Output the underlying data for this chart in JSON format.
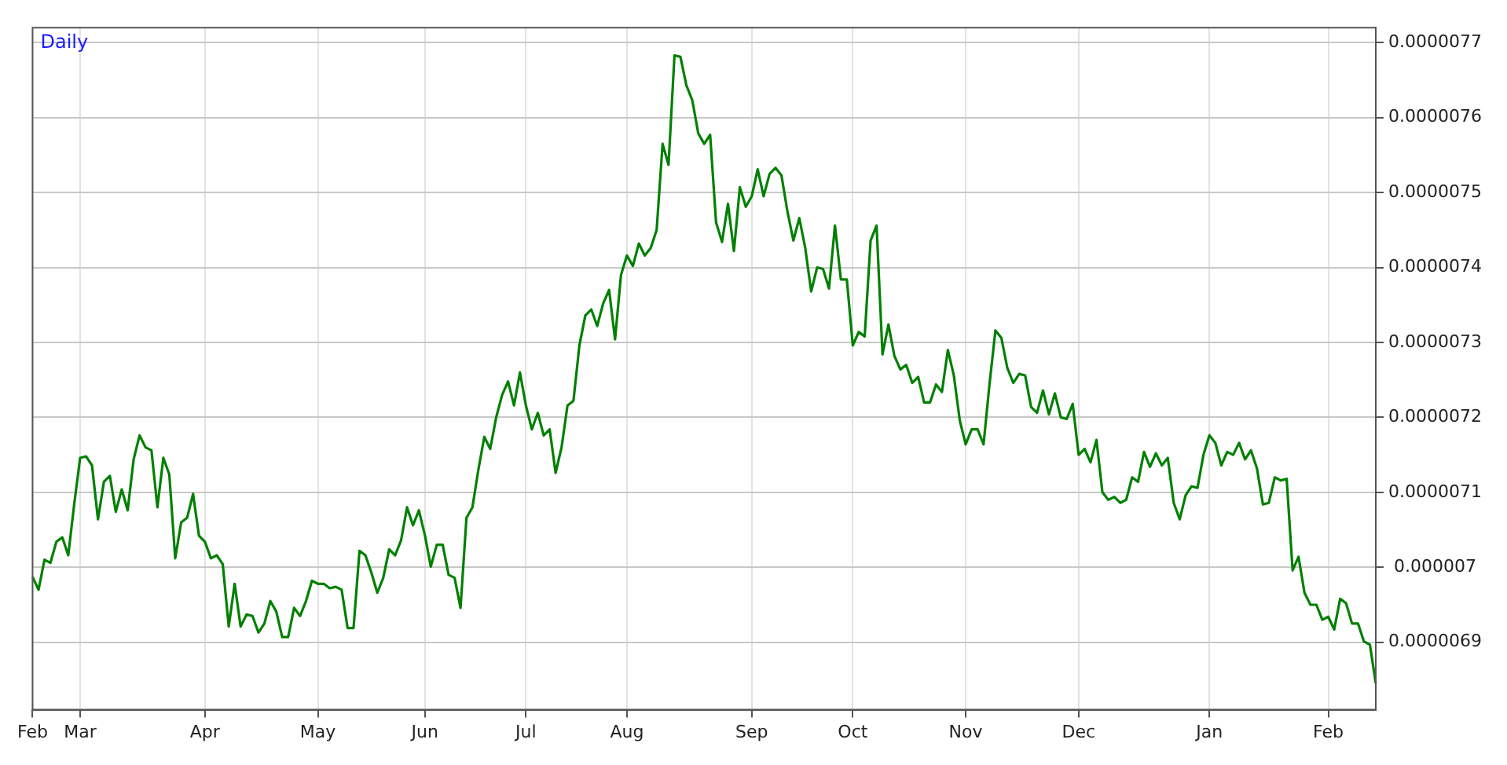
{
  "chart_data": {
    "type": "line",
    "title": "Daily",
    "grid": true,
    "legend": false,
    "marker": "none",
    "line_style": "solid",
    "categories": [
      "Feb",
      null,
      null,
      null,
      null,
      null,
      null,
      null,
      "Mar",
      null,
      null,
      null,
      null,
      null,
      null,
      null,
      null,
      null,
      null,
      null,
      null,
      null,
      null,
      null,
      null,
      null,
      null,
      null,
      null,
      "Apr",
      null,
      null,
      null,
      null,
      null,
      null,
      null,
      null,
      null,
      null,
      null,
      null,
      null,
      null,
      null,
      null,
      null,
      null,
      "May",
      null,
      null,
      null,
      null,
      null,
      null,
      null,
      null,
      null,
      null,
      null,
      null,
      null,
      null,
      null,
      null,
      null,
      "Jun",
      null,
      null,
      null,
      null,
      null,
      null,
      null,
      null,
      null,
      null,
      null,
      null,
      null,
      null,
      null,
      null,
      "Jul",
      null,
      null,
      null,
      null,
      null,
      null,
      null,
      null,
      null,
      null,
      null,
      null,
      null,
      null,
      null,
      null,
      "Aug",
      null,
      null,
      null,
      null,
      null,
      null,
      null,
      null,
      null,
      null,
      null,
      null,
      null,
      null,
      null,
      null,
      null,
      null,
      null,
      null,
      "Sep",
      null,
      null,
      null,
      null,
      null,
      null,
      null,
      null,
      null,
      null,
      null,
      null,
      null,
      null,
      null,
      null,
      "Oct",
      null,
      null,
      null,
      null,
      null,
      null,
      null,
      null,
      null,
      null,
      null,
      null,
      null,
      null,
      null,
      null,
      null,
      null,
      "Nov",
      null,
      null,
      null,
      null,
      null,
      null,
      null,
      null,
      null,
      null,
      null,
      null,
      null,
      null,
      null,
      null,
      null,
      null,
      "Dec",
      null,
      null,
      null,
      null,
      null,
      null,
      null,
      null,
      null,
      null,
      null,
      null,
      null,
      null,
      null,
      null,
      null,
      null,
      null,
      null,
      null,
      "Jan",
      null,
      null,
      null,
      null,
      null,
      null,
      null,
      null,
      null,
      null,
      null,
      null,
      null,
      null,
      null,
      null,
      null,
      null,
      null,
      "Feb",
      null,
      null,
      null,
      null,
      null,
      null,
      null,
      null
    ],
    "ylim": [
      6.81e-06,
      7.72e-06
    ],
    "yticks": [
      {
        "value": 6.9e-06,
        "label": "0.0000069"
      },
      {
        "value": 7e-06,
        "label": "0.000007"
      },
      {
        "value": 7.1e-06,
        "label": "0.0000071"
      },
      {
        "value": 7.2e-06,
        "label": "0.0000072"
      },
      {
        "value": 7.3e-06,
        "label": "0.0000073"
      },
      {
        "value": 7.4e-06,
        "label": "0.0000074"
      },
      {
        "value": 7.5e-06,
        "label": "0.0000075"
      },
      {
        "value": 7.6e-06,
        "label": "0.0000076"
      },
      {
        "value": 7.7e-06,
        "label": "0.0000077"
      }
    ],
    "series": [
      {
        "color": "#008000",
        "values": [
          6.987e-06,
          6.97e-06,
          7.01e-06,
          7.006e-06,
          7.034e-06,
          7.04e-06,
          7.016e-06,
          7.084e-06,
          7.146e-06,
          7.148e-06,
          7.136e-06,
          7.064e-06,
          7.114e-06,
          7.122e-06,
          7.074e-06,
          7.104e-06,
          7.076e-06,
          7.144e-06,
          7.176e-06,
          7.16e-06,
          7.156e-06,
          7.08e-06,
          7.146e-06,
          7.124e-06,
          7.012e-06,
          7.06e-06,
          7.066e-06,
          7.098e-06,
          7.042e-06,
          7.034e-06,
          7.012e-06,
          7.016e-06,
          7.004e-06,
          6.921e-06,
          6.978e-06,
          6.921e-06,
          6.937e-06,
          6.935e-06,
          6.913e-06,
          6.925e-06,
          6.955e-06,
          6.941e-06,
          6.907e-06,
          6.907e-06,
          6.946e-06,
          6.935e-06,
          6.955e-06,
          6.982e-06,
          6.978e-06,
          6.978e-06,
          6.972e-06,
          6.974e-06,
          6.97e-06,
          6.919e-06,
          6.919e-06,
          7.022e-06,
          7.016e-06,
          6.993e-06,
          6.966e-06,
          6.986e-06,
          7.024e-06,
          7.016e-06,
          7.036e-06,
          7.08e-06,
          7.056e-06,
          7.076e-06,
          7.043e-06,
          7.001e-06,
          7.03e-06,
          7.03e-06,
          6.99e-06,
          6.986e-06,
          6.946e-06,
          7.066e-06,
          7.08e-06,
          7.13e-06,
          7.174e-06,
          7.158e-06,
          7.2e-06,
          7.23e-06,
          7.248e-06,
          7.216e-06,
          7.26e-06,
          7.216e-06,
          7.184e-06,
          7.206e-06,
          7.176e-06,
          7.184e-06,
          7.126e-06,
          7.16e-06,
          7.216e-06,
          7.222e-06,
          7.296e-06,
          7.336e-06,
          7.344e-06,
          7.322e-06,
          7.352e-06,
          7.37e-06,
          7.304e-06,
          7.39e-06,
          7.416e-06,
          7.402e-06,
          7.432e-06,
          7.416e-06,
          7.426e-06,
          7.45e-06,
          7.565e-06,
          7.537e-06,
          7.683e-06,
          7.681e-06,
          7.643e-06,
          7.623e-06,
          7.579e-06,
          7.565e-06,
          7.577e-06,
          7.46e-06,
          7.434e-06,
          7.485e-06,
          7.422e-06,
          7.507e-06,
          7.481e-06,
          7.495e-06,
          7.531e-06,
          7.495e-06,
          7.525e-06,
          7.533e-06,
          7.523e-06,
          7.475e-06,
          7.436e-06,
          7.466e-06,
          7.426e-06,
          7.368e-06,
          7.4e-06,
          7.398e-06,
          7.372e-06,
          7.456e-06,
          7.384e-06,
          7.384e-06,
          7.296e-06,
          7.314e-06,
          7.308e-06,
          7.436e-06,
          7.456e-06,
          7.284e-06,
          7.324e-06,
          7.282e-06,
          7.264e-06,
          7.27e-06,
          7.246e-06,
          7.254e-06,
          7.22e-06,
          7.22e-06,
          7.244e-06,
          7.234e-06,
          7.29e-06,
          7.256e-06,
          7.196e-06,
          7.164e-06,
          7.184e-06,
          7.184e-06,
          7.164e-06,
          7.244e-06,
          7.316e-06,
          7.306e-06,
          7.266e-06,
          7.246e-06,
          7.258e-06,
          7.256e-06,
          7.214e-06,
          7.206e-06,
          7.236e-06,
          7.204e-06,
          7.232e-06,
          7.2e-06,
          7.198e-06,
          7.218e-06,
          7.15e-06,
          7.158e-06,
          7.14e-06,
          7.17e-06,
          7.1e-06,
          7.09e-06,
          7.094e-06,
          7.086e-06,
          7.09e-06,
          7.12e-06,
          7.114e-06,
          7.154e-06,
          7.134e-06,
          7.152e-06,
          7.136e-06,
          7.146e-06,
          7.086e-06,
          7.064e-06,
          7.096e-06,
          7.108e-06,
          7.106e-06,
          7.15e-06,
          7.176e-06,
          7.166e-06,
          7.136e-06,
          7.154e-06,
          7.15e-06,
          7.166e-06,
          7.144e-06,
          7.156e-06,
          7.132e-06,
          7.084e-06,
          7.086e-06,
          7.12e-06,
          7.116e-06,
          7.118e-06,
          6.996e-06,
          7.014e-06,
          6.966e-06,
          6.95e-06,
          6.95e-06,
          6.93e-06,
          6.934e-06,
          6.917e-06,
          6.958e-06,
          6.952e-06,
          6.925e-06,
          6.925e-06,
          6.901e-06,
          6.897e-06,
          6.845e-06
        ]
      }
    ]
  }
}
